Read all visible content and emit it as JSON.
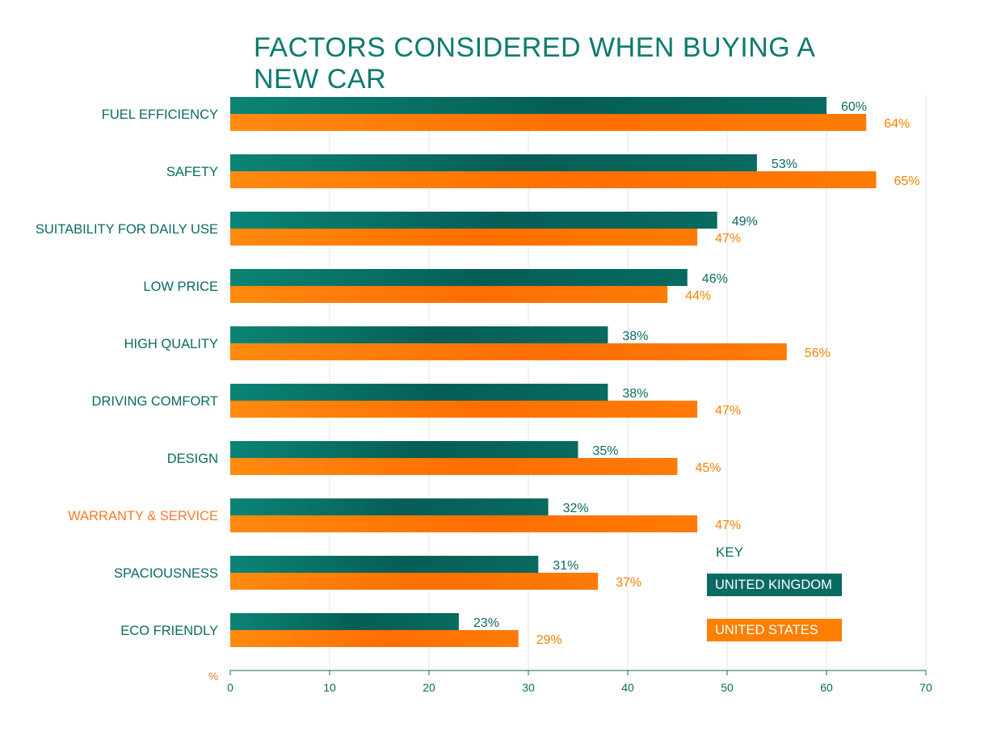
{
  "chart_data": {
    "type": "bar",
    "orientation": "horizontal",
    "title": "FACTORS CONSIDERED WHEN BUYING A NEW CAR",
    "unit_label": "%",
    "categories": [
      "FUEL EFFICIENCY",
      "SAFETY",
      "SUITABILITY FOR DAILY USE",
      "LOW PRICE",
      "HIGH QUALITY",
      "DRIVING COMFORT",
      "DESIGN",
      "WARRANTY & SERVICE",
      "SPACIOUSNESS",
      "ECO FRIENDLY"
    ],
    "highlighted_category": "WARRANTY & SERVICE",
    "series": [
      {
        "name": "UNITED KINGDOM",
        "color": "#0a6b61",
        "values": [
          60,
          53,
          49,
          46,
          38,
          38,
          35,
          32,
          31,
          23
        ]
      },
      {
        "name": "UNITED STATES",
        "color": "#ff7f00",
        "values": [
          64,
          65,
          47,
          44,
          56,
          47,
          45,
          47,
          37,
          29
        ]
      }
    ],
    "value_suffix": "%",
    "xlim": [
      0,
      70
    ],
    "xticks": [
      0,
      10,
      20,
      30,
      40,
      50,
      60,
      70
    ],
    "grid": true,
    "legend": {
      "title": "KEY",
      "placement": "bottom-right"
    }
  },
  "colors": {
    "title": "#0b7a6e",
    "uk": "#0a6b61",
    "us": "#ff7f00",
    "label": "#0b6b60",
    "highlight": "#f57a2a",
    "grid": "#e6e6e6"
  }
}
